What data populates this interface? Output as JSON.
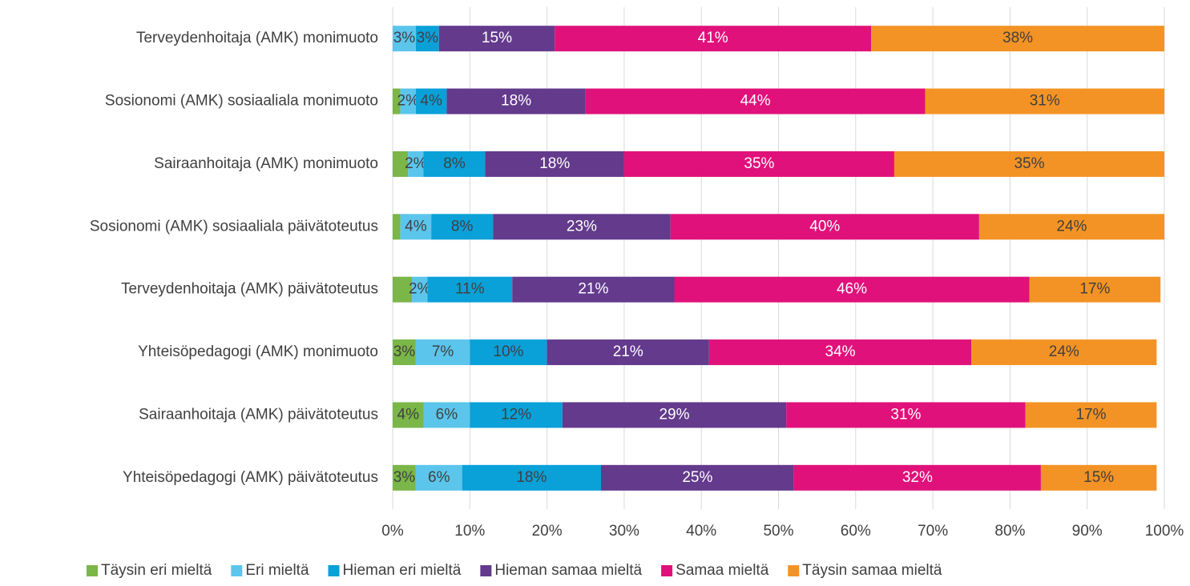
{
  "chart_data": {
    "type": "stacked_bar_horizontal",
    "categories": [
      "Terveydenhoitaja (AMK) monimuoto",
      "Sosionomi (AMK) sosiaaliala monimuoto",
      "Sairaanhoitaja (AMK) monimuoto",
      "Sosionomi (AMK) sosiaaliala päivätoteutus",
      "Terveydenhoitaja (AMK) päivätoteutus",
      "Yhteisöpedagogi (AMK) monimuoto",
      "Sairaanhoitaja (AMK) päivätoteutus",
      "Yhteisöpedagogi (AMK) päivätoteutus"
    ],
    "series": [
      {
        "name": "Täysin eri mieltä",
        "color": "#7ab648",
        "label_color": "#404040",
        "values": [
          0,
          1,
          2,
          1,
          2.5,
          3,
          4,
          3
        ],
        "value_labels": [
          null,
          null,
          null,
          null,
          null,
          "3%",
          "4%",
          "3%"
        ]
      },
      {
        "name": "Eri mieltä",
        "color": "#5bc5ec",
        "label_color": "#404040",
        "values": [
          3,
          2,
          2,
          4,
          2,
          7,
          6,
          6
        ],
        "value_labels": [
          "3%",
          "2%",
          "2%",
          "4%",
          "2%",
          "7%",
          "6%",
          "6%"
        ]
      },
      {
        "name": "Hieman eri mieltä",
        "color": "#0aa0d8",
        "label_color": "#404040",
        "values": [
          3,
          4,
          8,
          8,
          11,
          10,
          12,
          18
        ],
        "value_labels": [
          "3%",
          "4%",
          "8%",
          "8%",
          "11%",
          "10%",
          "12%",
          "18%"
        ]
      },
      {
        "name": "Hieman samaa mieltä",
        "color": "#633a8c",
        "label_color": "#ffffff",
        "values": [
          15,
          18,
          18,
          23,
          21,
          21,
          29,
          25
        ],
        "value_labels": [
          "15%",
          "18%",
          "18%",
          "23%",
          "21%",
          "21%",
          "29%",
          "25%"
        ]
      },
      {
        "name": "Samaa mieltä",
        "color": "#e0117a",
        "label_color": "#ffffff",
        "values": [
          41,
          44,
          35,
          40,
          46,
          34,
          31,
          32
        ],
        "value_labels": [
          "41%",
          "44%",
          "35%",
          "40%",
          "46%",
          "34%",
          "31%",
          "32%"
        ]
      },
      {
        "name": "Täysin samaa mieltä",
        "color": "#f39325",
        "label_color": "#404040",
        "values": [
          38,
          31,
          35,
          24,
          17,
          24,
          17,
          15
        ],
        "value_labels": [
          "38%",
          "31%",
          "35%",
          "24%",
          "17%",
          "24%",
          "17%",
          "15%"
        ]
      }
    ],
    "xlim": [
      0,
      100
    ],
    "xticks": [
      {
        "value": 0,
        "label": "0%"
      },
      {
        "value": 10,
        "label": "10%"
      },
      {
        "value": 20,
        "label": "20%"
      },
      {
        "value": 30,
        "label": "30%"
      },
      {
        "value": 40,
        "label": "40%"
      },
      {
        "value": 50,
        "label": "50%"
      },
      {
        "value": 60,
        "label": "60%"
      },
      {
        "value": 70,
        "label": "70%"
      },
      {
        "value": 80,
        "label": "80%"
      },
      {
        "value": 90,
        "label": "90%"
      },
      {
        "value": 100,
        "label": "100%"
      }
    ],
    "grid": true,
    "legend": "bottom"
  }
}
